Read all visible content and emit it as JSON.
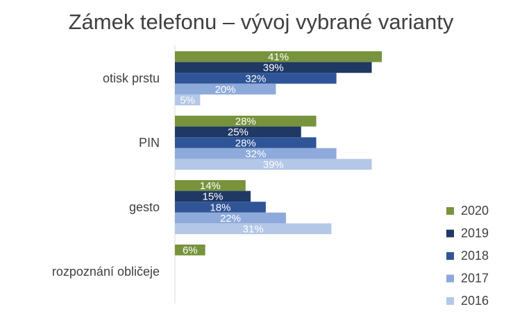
{
  "chart_data": {
    "type": "bar",
    "orientation": "horizontal",
    "title": "Zámek telefonu – vývoj vybrané varianty",
    "categories": [
      "otisk prstu",
      "PIN",
      "gesto",
      "rozpoznání obličeje"
    ],
    "series": [
      {
        "name": "2020",
        "color": "#77933c",
        "values": [
          41,
          28,
          14,
          6
        ],
        "labels": [
          "41%",
          "28%",
          "14%",
          "6%"
        ]
      },
      {
        "name": "2019",
        "color": "#1f3864",
        "values": [
          39,
          25,
          15,
          null
        ],
        "labels": [
          "39%",
          "25%",
          "15%",
          ""
        ]
      },
      {
        "name": "2018",
        "color": "#2f5597",
        "values": [
          32,
          28,
          18,
          null
        ],
        "labels": [
          "32%",
          "28%",
          "18%",
          ""
        ]
      },
      {
        "name": "2017",
        "color": "#8eaadb",
        "values": [
          20,
          32,
          22,
          null
        ],
        "labels": [
          "20%",
          "32%",
          "22%",
          ""
        ]
      },
      {
        "name": "2016",
        "color": "#b4c7e7",
        "values": [
          5,
          39,
          31,
          null
        ],
        "labels": [
          "5%",
          "39%",
          "31%",
          ""
        ]
      }
    ],
    "xlim": [
      0,
      45
    ],
    "xlabel": "",
    "ylabel": "",
    "grid": false,
    "legend_position": "bottom-right"
  }
}
